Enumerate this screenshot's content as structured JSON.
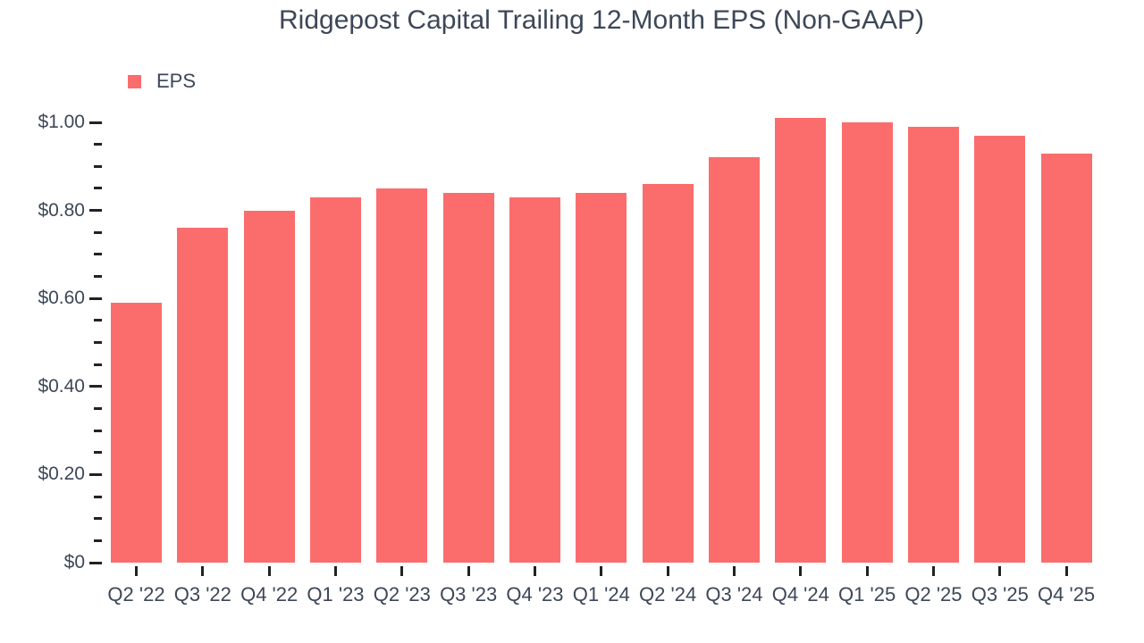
{
  "title": "Ridgepost Capital Trailing 12-Month EPS (Non-GAAP)",
  "legend": {
    "items": [
      {
        "label": "EPS",
        "color": "#fb6d6d"
      }
    ]
  },
  "colors": {
    "bar": "#fb6d6d",
    "text": "#3d4757",
    "tick": "#222222",
    "background": "#ffffff"
  },
  "chart_data": {
    "type": "bar",
    "title": "Ridgepost Capital Trailing 12-Month EPS (Non-GAAP)",
    "categories": [
      "Q2 '22",
      "Q3 '22",
      "Q4 '22",
      "Q1 '23",
      "Q2 '23",
      "Q3 '23",
      "Q4 '23",
      "Q1 '24",
      "Q2 '24",
      "Q3 '24",
      "Q4 '24",
      "Q1 '25",
      "Q2 '25",
      "Q3 '25",
      "Q4 '25"
    ],
    "series": [
      {
        "name": "EPS",
        "color": "#fb6d6d",
        "values": [
          0.59,
          0.76,
          0.8,
          0.83,
          0.85,
          0.84,
          0.83,
          0.84,
          0.86,
          0.92,
          1.01,
          1.0,
          0.99,
          0.97,
          0.93
        ]
      }
    ],
    "xlabel": "",
    "ylabel": "",
    "ylim": [
      0,
      1.0
    ],
    "grid": false,
    "legend_position": "top-left",
    "y_axis": {
      "currency_prefix": "$",
      "minor_step": 0.05,
      "major_ticks": [
        {
          "value": 0.0,
          "label": "$0"
        },
        {
          "value": 0.2,
          "label": "$0.20"
        },
        {
          "value": 0.4,
          "label": "$0.40"
        },
        {
          "value": 0.6,
          "label": "$0.60"
        },
        {
          "value": 0.8,
          "label": "$0.80"
        },
        {
          "value": 1.0,
          "label": "$1.00"
        }
      ]
    }
  }
}
